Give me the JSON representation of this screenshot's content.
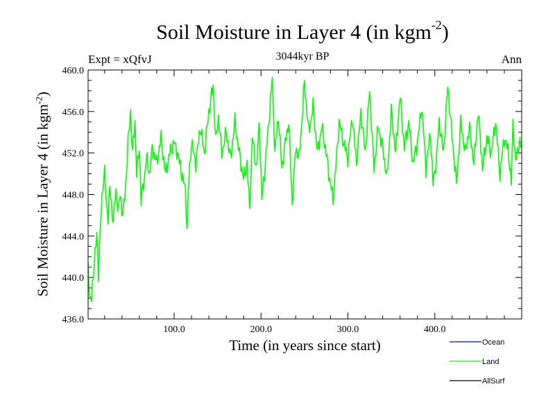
{
  "chart_data": {
    "type": "line",
    "title": "Soil Moisture in Layer 4 (in kgm",
    "title_superscript": "-2",
    "title_close": ")",
    "subtitle": "3044kyr BP",
    "experiment_label": "Expt = xQfvJ",
    "season_label": "Ann",
    "xlabel": "Time (in years since start)",
    "ylabel": "Soil Moisture in Layer 4 (in kgm",
    "ylabel_superscript": "-2",
    "ylabel_close": ")",
    "xlim": [
      1,
      500
    ],
    "ylim": [
      436.0,
      460.0
    ],
    "x_ticks": [
      100,
      200,
      300,
      400
    ],
    "x_tick_labels": [
      "100.0",
      "200.0",
      "300.0",
      "400.0"
    ],
    "y_ticks": [
      436,
      440,
      444,
      448,
      452,
      456,
      460
    ],
    "y_tick_labels": [
      "436.0",
      "440.0",
      "444.0",
      "448.0",
      "452.0",
      "456.0",
      "460.0"
    ],
    "series": [
      {
        "name": "Land",
        "color": "#00ff00",
        "x_step": 1,
        "anchors_x": [
          1,
          3,
          5,
          8,
          11,
          13,
          15,
          18,
          20,
          22,
          24,
          26,
          28,
          30,
          33,
          36,
          38,
          41,
          44,
          47,
          50,
          52,
          55,
          57,
          60,
          62,
          65,
          68,
          72,
          75,
          80,
          85,
          90,
          95,
          100,
          104,
          110,
          113,
          115,
          117,
          120,
          125,
          130,
          135,
          140,
          145,
          148,
          151,
          155,
          160,
          165,
          170,
          175,
          180,
          184,
          187,
          190,
          195,
          198,
          201,
          205,
          210,
          213,
          216,
          220,
          224,
          228,
          232,
          236,
          240,
          244,
          247,
          250,
          255,
          260,
          265,
          270,
          275,
          279,
          283,
          286,
          290,
          295,
          300,
          305,
          310,
          315,
          320,
          325,
          330,
          335,
          340,
          345,
          350,
          355,
          360,
          365,
          370,
          375,
          380,
          385,
          390,
          395,
          398,
          402,
          405,
          410,
          415,
          420,
          425,
          430,
          435,
          440,
          445,
          450,
          455,
          460,
          465,
          470,
          475,
          480,
          485,
          488,
          490,
          493,
          497,
          500
        ],
        "anchors_y": [
          441.0,
          438.0,
          437.8,
          441.5,
          444.0,
          440.5,
          444.5,
          449.0,
          450.2,
          447.0,
          446.0,
          448.5,
          447.0,
          445.5,
          448.3,
          446.5,
          448.0,
          446.0,
          448.5,
          453.0,
          456.0,
          452.0,
          455.0,
          450.0,
          452.5,
          447.5,
          449.0,
          451.5,
          450.0,
          452.5,
          451.0,
          453.5,
          450.0,
          452.0,
          453.0,
          452.0,
          449.5,
          448.5,
          444.5,
          449.5,
          453.0,
          451.0,
          454.5,
          452.0,
          456.0,
          458.5,
          453.0,
          455.5,
          452.0,
          454.0,
          451.5,
          455.0,
          452.0,
          449.5,
          451.0,
          446.5,
          453.5,
          450.5,
          455.0,
          447.5,
          451.0,
          456.0,
          459.2,
          452.0,
          455.5,
          450.5,
          453.0,
          455.0,
          447.0,
          452.5,
          451.5,
          455.0,
          458.8,
          454.0,
          456.5,
          452.0,
          454.5,
          452.0,
          449.5,
          447.5,
          450.5,
          455.0,
          453.0,
          451.5,
          455.5,
          451.0,
          456.0,
          452.0,
          458.0,
          450.5,
          454.5,
          452.5,
          449.5,
          456.0,
          452.0,
          457.5,
          452.5,
          455.0,
          451.0,
          453.0,
          456.5,
          450.5,
          454.0,
          449.0,
          451.5,
          455.0,
          452.0,
          458.5,
          453.5,
          449.0,
          455.0,
          452.0,
          454.5,
          451.0,
          456.0,
          450.5,
          453.5,
          452.0,
          455.0,
          450.0,
          453.5,
          452.0,
          449.0,
          455.0,
          451.0,
          453.0,
          452.5
        ]
      },
      {
        "name": "Ocean",
        "color": "#0000ff"
      },
      {
        "name": "AllSurf",
        "color": "#000000"
      }
    ],
    "legend": {
      "placement": "bottom-right",
      "entries": [
        {
          "label": "Ocean",
          "color": "#0000ff"
        },
        {
          "label": "Land",
          "color": "#00ff00"
        },
        {
          "label": "AllSurf",
          "color": "#000000"
        }
      ]
    }
  }
}
